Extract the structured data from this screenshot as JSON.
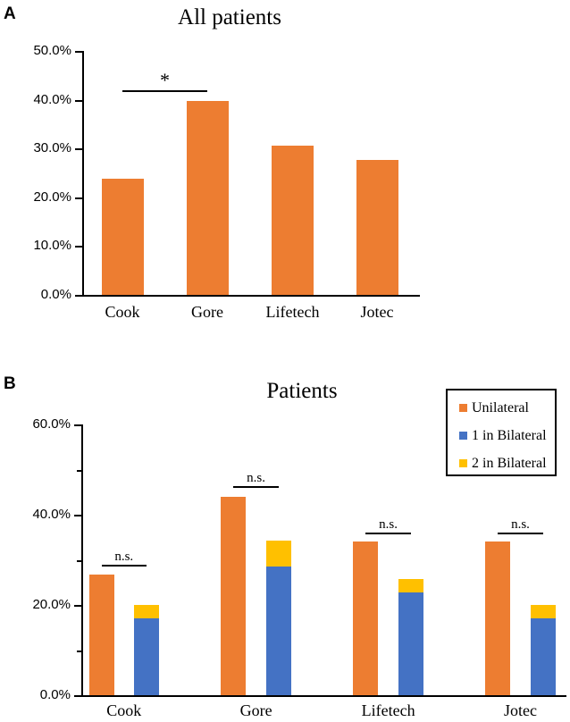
{
  "panels": [
    {
      "letter": "A"
    },
    {
      "letter": "B"
    }
  ],
  "colors": {
    "unilateral_orange": "#ED7D31",
    "bilateral_blue": "#4472C4",
    "bilateral_yellow": "#FFC000",
    "axis": "#000000",
    "background": "#FFFFFF"
  },
  "chart_data": [
    {
      "type": "bar",
      "panel": "A",
      "title": "All patients",
      "categories": [
        "Cook",
        "Gore",
        "Lifetech",
        "Jotec"
      ],
      "values": [
        23.8,
        39.8,
        30.5,
        27.7
      ],
      "value_unit": "percent",
      "xlabel": "",
      "ylabel": "",
      "ylim": [
        0,
        50
      ],
      "ytick_step": 10,
      "ytick_labels": [
        "0.0%",
        "10.0%",
        "20.0%",
        "30.0%",
        "40.0%",
        "50.0%"
      ],
      "grid": false,
      "bar_color": "#ED7D31",
      "significance": [
        {
          "from": "Cook",
          "to": "Gore",
          "label": "*",
          "line_y": 41.9
        }
      ]
    },
    {
      "type": "bar",
      "panel": "B",
      "layout": "grouped; first bar single series, second bar stacked (series 2 bottom + series 3 top)",
      "title": "Patients",
      "categories": [
        "Cook",
        "Gore",
        "Lifetech",
        "Jotec"
      ],
      "series": [
        {
          "name": "Unilateral",
          "color": "#ED7D31",
          "values": [
            26.7,
            43.9,
            34.1,
            34.1
          ]
        },
        {
          "name": "1 in Bilateral",
          "color": "#4472C4",
          "values": [
            17.0,
            28.5,
            22.8,
            17.0
          ]
        },
        {
          "name": "2 in Bilateral",
          "color": "#FFC000",
          "values": [
            3.0,
            5.8,
            2.9,
            3.0
          ]
        }
      ],
      "stacked_bar_totals": [
        20.0,
        34.3,
        25.7,
        20.0
      ],
      "value_unit": "percent",
      "xlabel": "",
      "ylabel": "",
      "ylim": [
        0,
        60
      ],
      "ytick_step_minor": 10,
      "ytick_labels": [
        "0.0%",
        "20.0%",
        "40.0%",
        "60.0%"
      ],
      "grid": false,
      "legend_position": "top-right",
      "significance": [
        {
          "category": "Cook",
          "label": "n.s.",
          "line_y": 29.0
        },
        {
          "category": "Gore",
          "label": "n.s.",
          "line_y": 46.4
        },
        {
          "category": "Lifetech",
          "label": "n.s.",
          "line_y": 36.1
        },
        {
          "category": "Jotec",
          "label": "n.s.",
          "line_y": 36.1
        }
      ]
    }
  ]
}
